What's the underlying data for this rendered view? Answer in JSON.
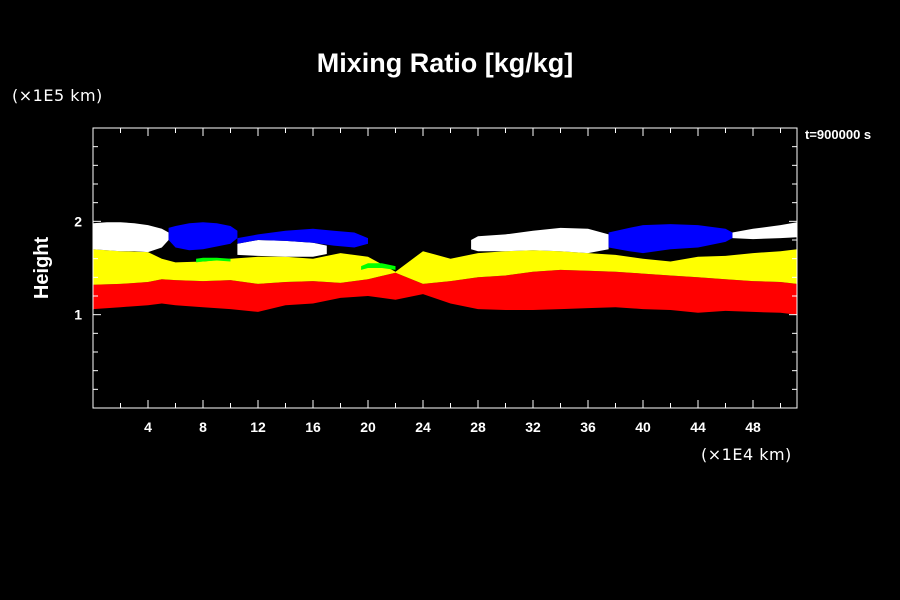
{
  "chart_data": {
    "type": "heatmap",
    "title": "Mixing Ratio [kg/kg]",
    "ylabel": "Height",
    "xlabel": "",
    "x_unit": "(×1E4 km)",
    "y_unit": "(×1E5 km)",
    "time_label": "t=900000 s",
    "xlim": [
      0,
      51.2
    ],
    "ylim": [
      0,
      3
    ],
    "x_ticks": [
      4,
      8,
      12,
      16,
      20,
      24,
      28,
      32,
      36,
      40,
      44,
      48
    ],
    "y_ticks": [
      1,
      2
    ],
    "x_minor_step": 2,
    "y_minor_step": 0.2,
    "colors": {
      "background": "#000000",
      "red": "#ff0000",
      "yellow": "#ffff00",
      "white": "#ffffff",
      "blue": "#0000ff",
      "green": "#00ff00"
    },
    "layers": [
      {
        "color": "red",
        "x": [
          0,
          2,
          4,
          5,
          6,
          8,
          10,
          12,
          14,
          16,
          18,
          20,
          22,
          24,
          26,
          28,
          30,
          32,
          34,
          36,
          38,
          40,
          42,
          44,
          46,
          48,
          50,
          51.2
        ],
        "top": [
          1.32,
          1.33,
          1.35,
          1.38,
          1.37,
          1.36,
          1.37,
          1.33,
          1.35,
          1.36,
          1.34,
          1.38,
          1.45,
          1.33,
          1.36,
          1.4,
          1.42,
          1.46,
          1.48,
          1.47,
          1.46,
          1.44,
          1.42,
          1.4,
          1.38,
          1.36,
          1.35,
          1.33
        ],
        "bottom": [
          1.06,
          1.08,
          1.1,
          1.12,
          1.1,
          1.08,
          1.06,
          1.03,
          1.1,
          1.12,
          1.18,
          1.2,
          1.16,
          1.22,
          1.12,
          1.06,
          1.05,
          1.05,
          1.06,
          1.07,
          1.08,
          1.06,
          1.05,
          1.02,
          1.04,
          1.03,
          1.02,
          1.0
        ]
      },
      {
        "color": "yellow",
        "x": [
          0,
          2,
          4,
          5,
          6,
          8,
          10,
          12,
          14,
          16,
          18,
          20,
          22,
          24,
          26,
          28,
          30,
          32,
          34,
          36,
          38,
          40,
          42,
          44,
          46,
          48,
          50,
          51.2
        ],
        "top": [
          1.7,
          1.68,
          1.67,
          1.6,
          1.56,
          1.57,
          1.6,
          1.62,
          1.62,
          1.6,
          1.66,
          1.62,
          1.46,
          1.68,
          1.6,
          1.66,
          1.68,
          1.69,
          1.68,
          1.66,
          1.64,
          1.6,
          1.57,
          1.62,
          1.63,
          1.66,
          1.68,
          1.7
        ],
        "bottom": [
          1.32,
          1.33,
          1.35,
          1.38,
          1.37,
          1.36,
          1.37,
          1.33,
          1.35,
          1.36,
          1.34,
          1.38,
          1.45,
          1.33,
          1.36,
          1.4,
          1.42,
          1.46,
          1.48,
          1.47,
          1.46,
          1.44,
          1.42,
          1.4,
          1.38,
          1.36,
          1.35,
          1.33
        ]
      },
      {
        "color": "white",
        "x": [
          0,
          1,
          2,
          3,
          4,
          5,
          5.5
        ],
        "top": [
          1.98,
          1.99,
          1.99,
          1.98,
          1.96,
          1.92,
          1.88
        ],
        "bottom": [
          1.7,
          1.69,
          1.68,
          1.68,
          1.67,
          1.72,
          1.8
        ]
      },
      {
        "color": "white",
        "x": [
          10.5,
          12,
          14,
          16,
          17
        ],
        "top": [
          1.76,
          1.8,
          1.79,
          1.77,
          1.74
        ],
        "bottom": [
          1.64,
          1.63,
          1.62,
          1.62,
          1.65
        ]
      },
      {
        "color": "white",
        "x": [
          27.5,
          28,
          30,
          32,
          34,
          36,
          37.5
        ],
        "top": [
          1.8,
          1.84,
          1.86,
          1.9,
          1.93,
          1.92,
          1.86
        ],
        "bottom": [
          1.7,
          1.68,
          1.68,
          1.69,
          1.68,
          1.66,
          1.7
        ]
      },
      {
        "color": "white",
        "x": [
          46.5,
          48,
          50,
          51.2
        ],
        "top": [
          1.88,
          1.92,
          1.96,
          1.99
        ],
        "bottom": [
          1.82,
          1.81,
          1.82,
          1.83
        ]
      },
      {
        "color": "blue",
        "x": [
          5.5,
          6,
          7,
          8,
          9,
          10,
          10.5
        ],
        "top": [
          1.93,
          1.95,
          1.98,
          1.99,
          1.98,
          1.95,
          1.9
        ],
        "bottom": [
          1.8,
          1.72,
          1.69,
          1.7,
          1.73,
          1.76,
          1.82
        ]
      },
      {
        "color": "blue",
        "x": [
          10.5,
          12,
          14,
          16,
          17.5,
          19,
          20
        ],
        "top": [
          1.82,
          1.86,
          1.9,
          1.92,
          1.9,
          1.88,
          1.82
        ],
        "bottom": [
          1.76,
          1.8,
          1.79,
          1.77,
          1.74,
          1.72,
          1.76
        ]
      },
      {
        "color": "blue",
        "x": [
          37.5,
          39,
          40,
          42,
          44,
          46,
          46.5
        ],
        "top": [
          1.88,
          1.93,
          1.96,
          1.97,
          1.96,
          1.92,
          1.88
        ],
        "bottom": [
          1.72,
          1.68,
          1.66,
          1.7,
          1.72,
          1.78,
          1.82
        ]
      },
      {
        "color": "green",
        "x": [
          7.5,
          8,
          9,
          10
        ],
        "top": [
          1.6,
          1.61,
          1.61,
          1.6
        ],
        "bottom": [
          1.56,
          1.57,
          1.58,
          1.57
        ]
      },
      {
        "color": "green",
        "x": [
          19.5,
          20,
          21,
          22
        ],
        "top": [
          1.52,
          1.55,
          1.55,
          1.52
        ],
        "bottom": [
          1.48,
          1.5,
          1.5,
          1.48
        ]
      }
    ]
  }
}
